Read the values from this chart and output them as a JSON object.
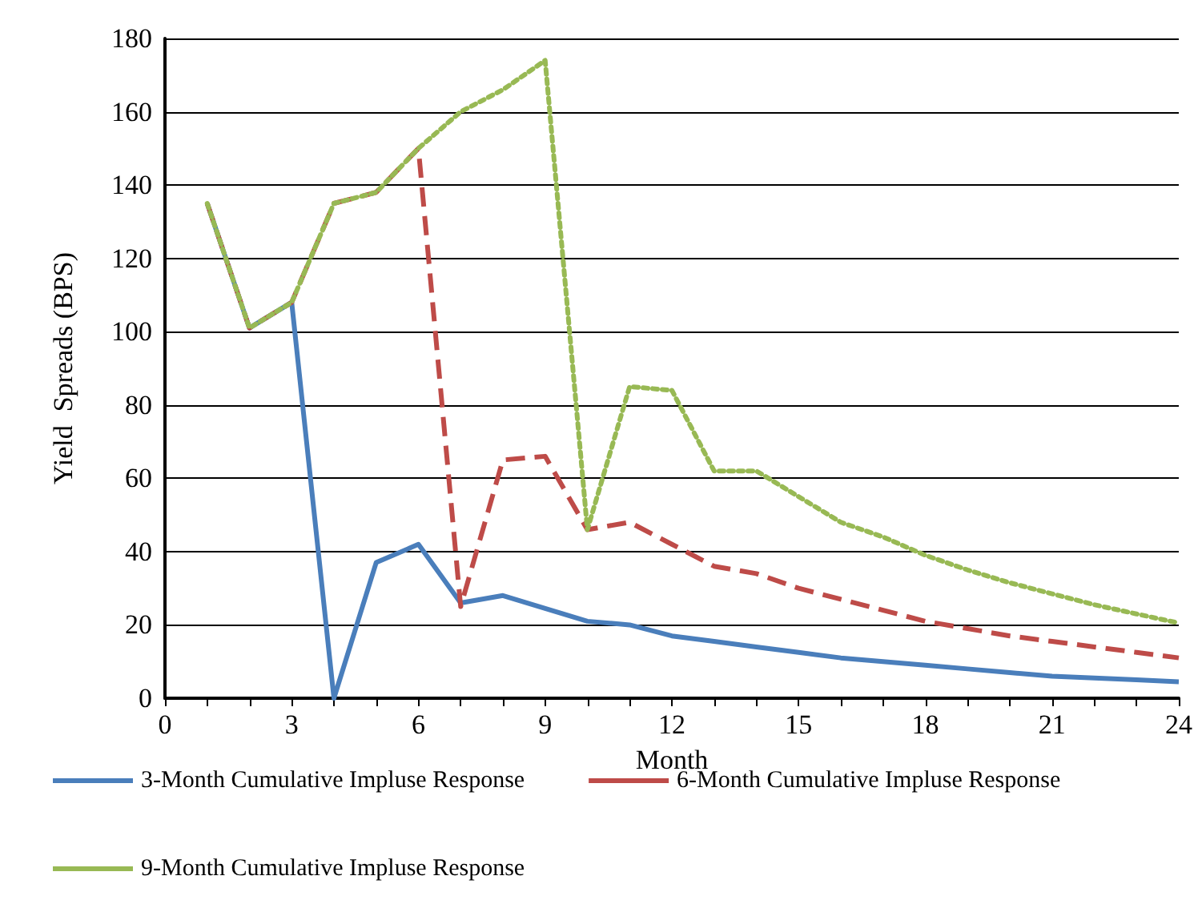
{
  "chart_data": {
    "type": "line",
    "xlabel": "Month",
    "ylabel": "Yield  Spreads (BPS)",
    "xlim": [
      0,
      24
    ],
    "ylim": [
      0,
      180
    ],
    "xticks": [
      0,
      {
        "value": 1,
        "label": null
      },
      {
        "value": 2,
        "label": null
      },
      3,
      {
        "value": 4,
        "label": null
      },
      {
        "value": 5,
        "label": null
      },
      6,
      {
        "value": 7,
        "label": null
      },
      {
        "value": 8,
        "label": null
      },
      9,
      {
        "value": 10,
        "label": null
      },
      {
        "value": 11,
        "label": null
      },
      12,
      {
        "value": 13,
        "label": null
      },
      {
        "value": 14,
        "label": null
      },
      15,
      {
        "value": 16,
        "label": null
      },
      {
        "value": 17,
        "label": null
      },
      18,
      {
        "value": 19,
        "label": null
      },
      {
        "value": 20,
        "label": null
      },
      21,
      {
        "value": 22,
        "label": null
      },
      {
        "value": 23,
        "label": null
      },
      24
    ],
    "yticks": [
      0,
      20,
      40,
      60,
      80,
      100,
      120,
      140,
      160,
      180
    ],
    "grid": "y",
    "legend": "bottom",
    "marker": "none",
    "x": [
      1,
      2,
      3,
      4,
      5,
      6,
      7,
      8,
      9,
      10,
      11,
      12,
      13,
      14,
      15,
      16,
      17,
      18,
      19,
      20,
      21,
      22,
      23,
      24
    ],
    "series": [
      {
        "name": "3-Month Cumulative Impluse Response",
        "color": "#4a7ebb",
        "line_style": "solid",
        "values": [
          135,
          101,
          108,
          0,
          37,
          42,
          26,
          28,
          24.5,
          21,
          20,
          17,
          15.5,
          14,
          12.5,
          11,
          10,
          9,
          8,
          7,
          6,
          5.5,
          5,
          4.5
        ]
      },
      {
        "name": "6-Month Cumulative Impluse Response",
        "color": "#be4b48",
        "line_style": "dashed",
        "values": [
          135,
          101,
          108,
          135,
          138,
          150,
          25,
          65,
          66,
          46,
          48,
          42,
          36,
          34,
          30,
          27,
          24,
          21,
          19,
          17,
          15.5,
          14,
          12.5,
          11
        ]
      },
      {
        "name": "9-Month Cumulative Impluse Response",
        "color": "#98b954",
        "line_style": "dotted",
        "values": [
          135,
          101,
          108,
          135,
          138,
          150,
          160,
          166,
          174,
          46,
          85,
          84,
          62,
          62,
          55,
          48,
          44,
          39,
          35,
          31.5,
          28.5,
          25.5,
          23,
          20.5
        ]
      }
    ]
  }
}
